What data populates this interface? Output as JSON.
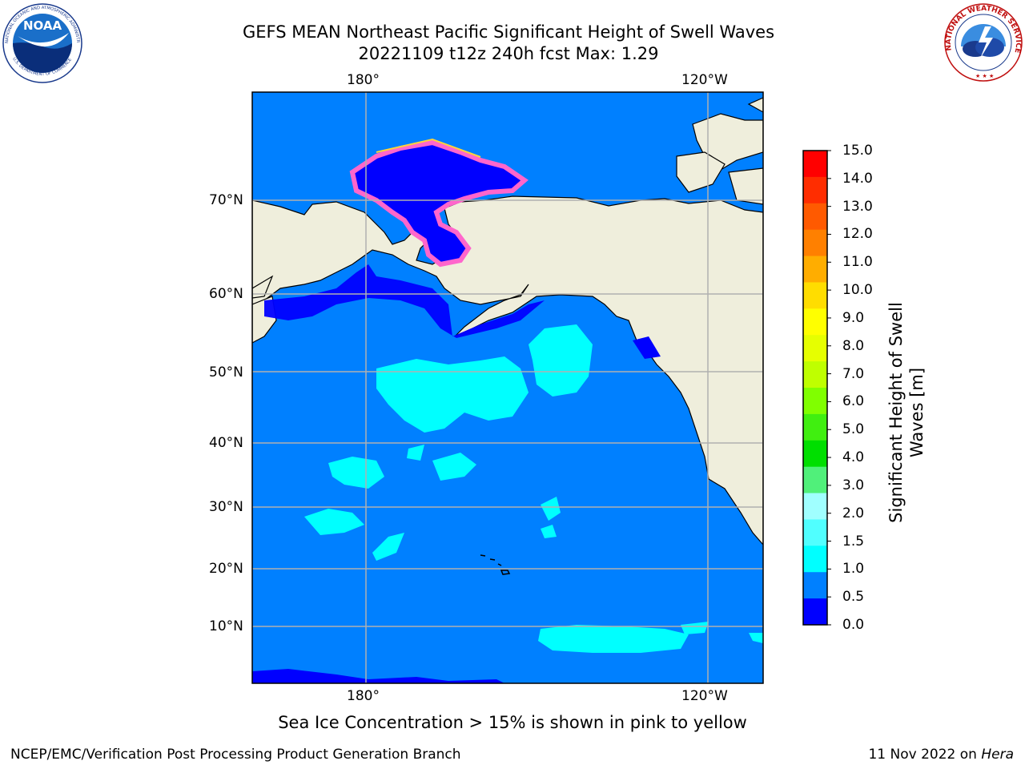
{
  "header": {
    "title_line1": "GEFS MEAN Northeast Pacific Significant Height of Swell Waves",
    "title_line2": "20221109 t12z 240h fcst   Max: 1.29"
  },
  "logos": {
    "left": {
      "text": "NOAA",
      "ring_top": "NATIONAL OCEANIC AND ATMOSPHERIC ADMINISTRATION",
      "ring_bottom": "U.S. DEPARTMENT OF COMMERCE"
    },
    "right": {
      "ring_text": "NATIONAL WEATHER SERVICE"
    }
  },
  "map": {
    "lon_labels_top": [
      "180°",
      "120°W"
    ],
    "lon_labels_bottom": [
      "180°",
      "120°W"
    ],
    "lat_labels": [
      "70°N",
      "60°N",
      "50°N",
      "40°N",
      "30°N",
      "20°N",
      "10°N"
    ],
    "colors": {
      "ocean": "#0080ff",
      "ocean_low": "#0000ff",
      "cyan": "#00ffff",
      "land": "#efeedc",
      "ice_pink": "#ff66cc",
      "ice_yellow": "#ffd23c",
      "grid": "#b0b0b0"
    }
  },
  "colorbar": {
    "label_line1": "Significant Height of Swell",
    "label_line2": "Waves [m]",
    "ticks": [
      "15.0",
      "14.0",
      "13.0",
      "12.0",
      "11.0",
      "10.0",
      "9.0",
      "8.0",
      "7.0",
      "6.0",
      "5.0",
      "4.0",
      "3.0",
      "2.0",
      "1.5",
      "1.0",
      "0.5",
      "0.0"
    ],
    "colors_top_to_bottom": [
      "#ff0000",
      "#ff2d00",
      "#ff5a00",
      "#ff8000",
      "#ffad00",
      "#ffdd00",
      "#ffff00",
      "#e6ff00",
      "#bfff00",
      "#80ff00",
      "#40ef10",
      "#00df00",
      "#50f07a",
      "#a0ffff",
      "#50ffff",
      "#00ffff",
      "#0080ff",
      "#0000ff"
    ]
  },
  "note": "Sea Ice Concentration > 15% is shown in pink to yellow",
  "footer": {
    "left": "NCEP/EMC/Verification Post Processing Product Generation Branch",
    "right_date": "11 Nov 2022 on ",
    "right_machine": "Hera"
  }
}
